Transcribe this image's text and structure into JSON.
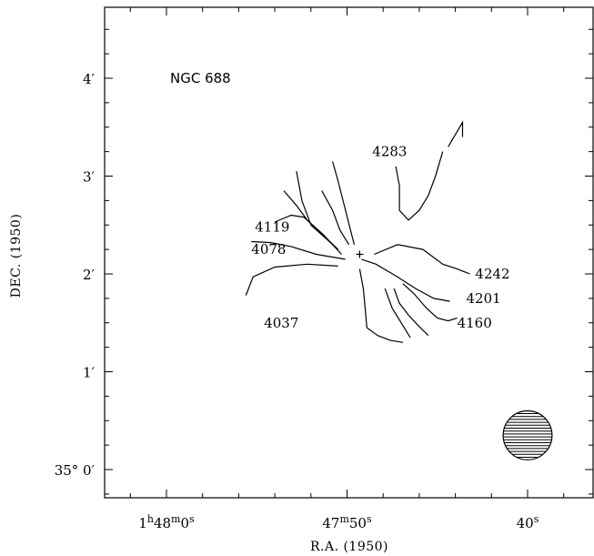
{
  "chart_data": {
    "type": "contour",
    "title": "NGC 688",
    "xlabel": "R.A. (1950)",
    "ylabel": "DEC. (1950)",
    "xlim_sec": [
      66,
      38
    ],
    "ylim_arcmin": [
      -0.3,
      4.7
    ],
    "x_ticks": [
      {
        "sec": 60,
        "h": "1",
        "m": "48",
        "s": "0",
        "text_h": "h",
        "text_m": "m",
        "text_s": "s"
      },
      {
        "sec": 50,
        "h": "",
        "m": "47",
        "s": "50",
        "text_h": "",
        "text_m": "m",
        "text_s": "s"
      },
      {
        "sec": 40,
        "h": "",
        "m": "",
        "s": "40",
        "text_h": "",
        "text_m": "",
        "text_s": "s"
      }
    ],
    "y_ticks": [
      {
        "arcmin": 0,
        "label": "35° 0′"
      },
      {
        "arcmin": 1,
        "label": "1′"
      },
      {
        "arcmin": 2,
        "label": "2′"
      },
      {
        "arcmin": 3,
        "label": "3′"
      },
      {
        "arcmin": 4,
        "label": "4′"
      }
    ],
    "center_marker": {
      "x_sec": 49.3,
      "y_arcmin": 2.2
    },
    "beam": {
      "x_sec": 40.0,
      "y_arcmin": 0.35,
      "radius_arcmin": 0.25
    },
    "contour_labels": [
      {
        "text": "4283",
        "x_sec": 48.6,
        "y_arcmin": 3.25
      },
      {
        "text": "4119",
        "x_sec": 55.1,
        "y_arcmin": 2.48
      },
      {
        "text": "4078",
        "x_sec": 55.3,
        "y_arcmin": 2.25
      },
      {
        "text": "4037",
        "x_sec": 54.6,
        "y_arcmin": 1.5
      },
      {
        "text": "4242",
        "x_sec": 42.9,
        "y_arcmin": 2.0
      },
      {
        "text": "4201",
        "x_sec": 43.4,
        "y_arcmin": 1.75
      },
      {
        "text": "4160",
        "x_sec": 43.9,
        "y_arcmin": 1.5
      }
    ],
    "contours": [
      {
        "level": "4283",
        "points": [
          [
            47.3,
            3.1
          ],
          [
            47.1,
            2.9
          ],
          [
            47.1,
            2.65
          ],
          [
            46.6,
            2.55
          ],
          [
            46.0,
            2.65
          ],
          [
            45.5,
            2.8
          ],
          [
            45.1,
            3.0
          ],
          [
            44.7,
            3.25
          ]
        ]
      },
      {
        "level": "4283",
        "points": [
          [
            44.4,
            3.3
          ],
          [
            43.6,
            3.55
          ],
          [
            43.6,
            3.4
          ]
        ]
      },
      {
        "level": "4119",
        "points": [
          [
            52.8,
            3.05
          ],
          [
            52.5,
            2.75
          ],
          [
            52.0,
            2.5
          ],
          [
            50.5,
            2.25
          ]
        ]
      },
      {
        "level": "4119",
        "points": [
          [
            53.5,
            2.85
          ],
          [
            52.8,
            2.7
          ],
          [
            52.2,
            2.55
          ],
          [
            50.5,
            2.25
          ]
        ]
      },
      {
        "level": "4078",
        "points": [
          [
            50.8,
            3.15
          ],
          [
            50.5,
            2.95
          ],
          [
            49.6,
            2.3
          ]
        ]
      },
      {
        "level": "4078",
        "points": [
          [
            51.4,
            2.85
          ],
          [
            50.8,
            2.65
          ],
          [
            50.4,
            2.45
          ],
          [
            49.9,
            2.3
          ]
        ]
      },
      {
        "level": "4078",
        "points": [
          [
            54.0,
            2.53
          ],
          [
            53.1,
            2.6
          ],
          [
            52.4,
            2.58
          ],
          [
            51.3,
            2.4
          ],
          [
            50.3,
            2.2
          ]
        ]
      },
      {
        "level": "4078",
        "points": [
          [
            55.3,
            2.33
          ],
          [
            54.2,
            2.32
          ],
          [
            53.1,
            2.28
          ],
          [
            51.7,
            2.2
          ],
          [
            50.1,
            2.15
          ]
        ]
      },
      {
        "level": "4037",
        "points": [
          [
            55.6,
            1.78
          ],
          [
            55.2,
            1.97
          ],
          [
            54.0,
            2.07
          ],
          [
            52.2,
            2.1
          ],
          [
            50.5,
            2.08
          ]
        ]
      },
      {
        "level": "4242",
        "points": [
          [
            48.5,
            2.2
          ],
          [
            47.2,
            2.3
          ],
          [
            45.8,
            2.25
          ],
          [
            44.7,
            2.1
          ],
          [
            43.9,
            2.05
          ],
          [
            43.2,
            2.0
          ]
        ]
      },
      {
        "level": "4201",
        "points": [
          [
            49.2,
            2.15
          ],
          [
            48.4,
            2.1
          ],
          [
            47.3,
            1.98
          ],
          [
            46.2,
            1.85
          ],
          [
            45.2,
            1.75
          ],
          [
            44.3,
            1.72
          ]
        ]
      },
      {
        "level": "4160",
        "points": [
          [
            46.9,
            1.9
          ],
          [
            46.3,
            1.8
          ],
          [
            45.6,
            1.65
          ],
          [
            45.0,
            1.55
          ],
          [
            44.4,
            1.52
          ],
          [
            43.9,
            1.55
          ]
        ]
      },
      {
        "level": "4160",
        "points": [
          [
            47.4,
            1.85
          ],
          [
            47.1,
            1.7
          ],
          [
            46.6,
            1.58
          ],
          [
            46.1,
            1.48
          ],
          [
            45.5,
            1.37
          ]
        ]
      },
      {
        "level": "4160",
        "points": [
          [
            47.9,
            1.85
          ],
          [
            47.5,
            1.65
          ],
          [
            47.0,
            1.5
          ],
          [
            46.5,
            1.35
          ]
        ]
      },
      {
        "level": "4160",
        "points": [
          [
            49.3,
            2.05
          ],
          [
            49.1,
            1.85
          ],
          [
            49.0,
            1.65
          ],
          [
            48.9,
            1.45
          ],
          [
            48.3,
            1.37
          ],
          [
            47.6,
            1.32
          ],
          [
            46.9,
            1.3
          ]
        ]
      }
    ]
  }
}
